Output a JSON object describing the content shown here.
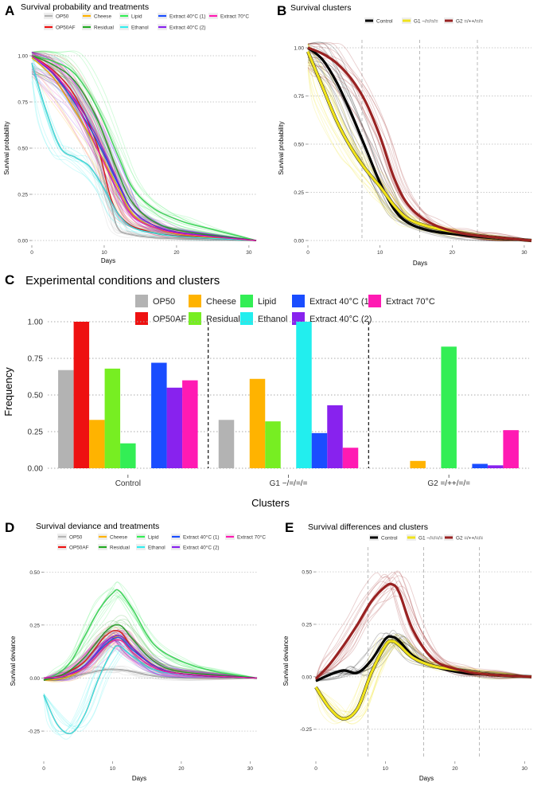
{
  "panels": [
    {
      "letter": "A",
      "title": "Survival probability and treatments",
      "type": "line",
      "xlabel": "Days",
      "ylabel": "Survival probability",
      "xlim": [
        0,
        31
      ],
      "ylim": [
        0,
        1
      ],
      "xticks": [
        0,
        10,
        20,
        30
      ],
      "yticks": [
        0,
        0.25,
        0.5,
        0.75,
        1.0
      ],
      "ytick_labels": [
        "0.00",
        "0.25",
        "0.50",
        "0.75",
        "1.00"
      ],
      "legend": [
        {
          "name": "OP50",
          "color": "#b3b3b3"
        },
        {
          "name": "Cheese",
          "color": "#ffb300"
        },
        {
          "name": "Lipid",
          "color": "#33ee55"
        },
        {
          "name": "Extract 40°C (1)",
          "color": "#1a4dff"
        },
        {
          "name": "Extract 70°C",
          "color": "#ff1ab3"
        },
        {
          "name": "OP50AF",
          "color": "#ee1111"
        },
        {
          "name": "Residual",
          "color": "#22aa22"
        },
        {
          "name": "Ethanol",
          "color": "#33eeee"
        },
        {
          "name": "Extract 40°C (2)",
          "color": "#8822ee"
        }
      ],
      "series": [
        {
          "name": "OP50",
          "color": "#b3b3b3",
          "x": [
            0,
            3,
            6,
            9,
            11,
            12,
            14,
            17,
            21,
            31
          ],
          "y": [
            1.0,
            0.9,
            0.72,
            0.45,
            0.18,
            0.06,
            0.03,
            0.015,
            0.01,
            0.0
          ]
        },
        {
          "name": "OP50AF",
          "color": "#ee1111",
          "x": [
            0,
            3,
            6,
            9,
            11,
            13,
            16,
            20,
            31
          ],
          "y": [
            1.0,
            0.92,
            0.78,
            0.52,
            0.22,
            0.1,
            0.05,
            0.025,
            0.0
          ]
        },
        {
          "name": "Cheese",
          "color": "#ffb300",
          "x": [
            0,
            3,
            6,
            9,
            12,
            14,
            17,
            21,
            31
          ],
          "y": [
            0.99,
            0.88,
            0.7,
            0.5,
            0.28,
            0.14,
            0.07,
            0.03,
            0.0
          ]
        },
        {
          "name": "Lipid",
          "color": "#33ee55",
          "x": [
            0,
            3,
            6,
            9,
            12,
            14,
            17,
            21,
            25,
            31
          ],
          "y": [
            1.0,
            0.97,
            0.9,
            0.72,
            0.45,
            0.28,
            0.17,
            0.1,
            0.06,
            0.0
          ]
        },
        {
          "name": "Residual",
          "color": "#22aa22",
          "x": [
            0,
            3,
            6,
            9,
            12,
            14,
            17,
            21,
            31
          ],
          "y": [
            1.0,
            0.95,
            0.86,
            0.66,
            0.36,
            0.2,
            0.1,
            0.05,
            0.0
          ]
        },
        {
          "name": "Ethanol",
          "color": "#33eeee",
          "x": [
            0,
            2,
            4,
            6,
            8,
            10,
            12,
            14,
            17,
            21,
            31
          ],
          "y": [
            0.96,
            0.7,
            0.5,
            0.45,
            0.4,
            0.28,
            0.14,
            0.07,
            0.04,
            0.02,
            0.0
          ]
        },
        {
          "name": "Extract 40°C (1)",
          "color": "#1a4dff",
          "x": [
            0,
            3,
            6,
            9,
            12,
            14,
            17,
            21,
            31
          ],
          "y": [
            1.0,
            0.9,
            0.74,
            0.54,
            0.3,
            0.16,
            0.08,
            0.04,
            0.0
          ]
        },
        {
          "name": "Extract 40°C (2)",
          "color": "#8822ee",
          "x": [
            0,
            3,
            6,
            9,
            12,
            14,
            17,
            21,
            31
          ],
          "y": [
            1.0,
            0.9,
            0.76,
            0.56,
            0.31,
            0.16,
            0.08,
            0.04,
            0.0
          ]
        },
        {
          "name": "Extract 70°C",
          "color": "#ff1ab3",
          "x": [
            0,
            3,
            6,
            9,
            12,
            14,
            17,
            21,
            31
          ],
          "y": [
            1.0,
            0.91,
            0.75,
            0.5,
            0.26,
            0.13,
            0.07,
            0.035,
            0.0
          ]
        }
      ]
    },
    {
      "letter": "B",
      "title": "Survival clusters",
      "type": "line",
      "xlabel": "Days",
      "ylabel": "Survival probability",
      "xlim": [
        0,
        31
      ],
      "ylim": [
        0,
        1
      ],
      "xticks": [
        0,
        10,
        20,
        30
      ],
      "yticks": [
        0,
        0.25,
        0.5,
        0.75,
        1.0
      ],
      "ytick_labels": [
        "0.00",
        "0.25",
        "0.50",
        "0.75",
        "1.00"
      ],
      "vlines": [
        7.5,
        15.5,
        23.5
      ],
      "legend": [
        {
          "name": "Control",
          "color": "#000000"
        },
        {
          "name": "G1 −/=/=/=",
          "color": "#f0e31c"
        },
        {
          "name": "G2 =/++/=/=",
          "color": "#992222"
        }
      ],
      "series": [
        {
          "name": "Control",
          "color": "#000000",
          "x": [
            0,
            2,
            4,
            6,
            8,
            10,
            12,
            14,
            17,
            21,
            25,
            31
          ],
          "y": [
            1.0,
            0.94,
            0.82,
            0.66,
            0.48,
            0.3,
            0.16,
            0.09,
            0.05,
            0.03,
            0.015,
            0.0
          ]
        },
        {
          "name": "G1 −/=/=/=",
          "color": "#f0e31c",
          "x": [
            0,
            2,
            4,
            6,
            8,
            10,
            12,
            14,
            17,
            21,
            25,
            31
          ],
          "y": [
            0.98,
            0.8,
            0.62,
            0.48,
            0.37,
            0.28,
            0.18,
            0.11,
            0.07,
            0.04,
            0.02,
            0.0
          ]
        },
        {
          "name": "G2 =/++/=/=",
          "color": "#992222",
          "x": [
            0,
            2,
            4,
            6,
            8,
            10,
            12,
            14,
            17,
            21,
            25,
            31
          ],
          "y": [
            1.0,
            0.97,
            0.92,
            0.84,
            0.72,
            0.54,
            0.32,
            0.18,
            0.09,
            0.04,
            0.02,
            0.0
          ]
        }
      ]
    },
    {
      "letter": "C",
      "title": "Experimental conditions and clusters",
      "type": "bar",
      "xlabel": "Clusters",
      "ylabel": "Frequency",
      "ylim": [
        0,
        1
      ],
      "yticks": [
        0,
        0.25,
        0.5,
        0.75,
        1.0
      ],
      "ytick_labels": [
        "0.00",
        "0.25",
        "0.50",
        "0.75",
        "1.00"
      ],
      "categories": [
        "Control",
        "G1 −/=/=/=",
        "G2 =/++/=/="
      ],
      "legend": [
        {
          "name": "OP50",
          "color": "#b3b3b3"
        },
        {
          "name": "Cheese",
          "color": "#ffb300"
        },
        {
          "name": "Lipid",
          "color": "#33ee55"
        },
        {
          "name": "Extract 40°C (1)",
          "color": "#1a4dff"
        },
        {
          "name": "Extract 70°C",
          "color": "#ff1ab3"
        },
        {
          "name": "OP50AF",
          "color": "#ee1111"
        },
        {
          "name": "Residual",
          "color": "#77ee22"
        },
        {
          "name": "Ethanol",
          "color": "#22eeee"
        },
        {
          "name": "Extract 40°C (2)",
          "color": "#8822ee"
        }
      ],
      "series": [
        {
          "name": "OP50",
          "color": "#b3b3b3",
          "values": [
            0.67,
            0.33,
            0.0
          ]
        },
        {
          "name": "OP50AF",
          "color": "#ee1111",
          "values": [
            1.0,
            0.0,
            0.0
          ]
        },
        {
          "name": "Cheese",
          "color": "#ffb300",
          "values": [
            0.33,
            0.61,
            0.05
          ]
        },
        {
          "name": "Residual",
          "color": "#77ee22",
          "values": [
            0.68,
            0.32,
            0.0
          ]
        },
        {
          "name": "Lipid",
          "color": "#33ee55",
          "values": [
            0.17,
            0.0,
            0.83
          ]
        },
        {
          "name": "Ethanol",
          "color": "#22eeee",
          "values": [
            0.0,
            1.0,
            0.0
          ]
        },
        {
          "name": "Extract 40°C (1)",
          "color": "#1a4dff",
          "values": [
            0.72,
            0.24,
            0.03
          ]
        },
        {
          "name": "Extract 40°C (2)",
          "color": "#8822ee",
          "values": [
            0.55,
            0.43,
            0.02
          ]
        },
        {
          "name": "Extract 70°C",
          "color": "#ff1ab3",
          "values": [
            0.6,
            0.14,
            0.26
          ]
        }
      ]
    },
    {
      "letter": "D",
      "title": "Survival deviance and treatments",
      "type": "line",
      "xlabel": "Days",
      "ylabel": "Survival deviance",
      "xlim": [
        0,
        31
      ],
      "ylim": [
        -0.37,
        0.58
      ],
      "xticks": [
        0,
        10,
        20,
        30
      ],
      "yticks": [
        -0.25,
        0,
        0.25,
        0.5
      ],
      "ytick_labels": [
        "-0.25",
        "0.00",
        "0.25",
        "0.50"
      ],
      "legend": [
        {
          "name": "OP50",
          "color": "#b3b3b3"
        },
        {
          "name": "Cheese",
          "color": "#ffb300"
        },
        {
          "name": "Lipid",
          "color": "#33ee55"
        },
        {
          "name": "Extract 40°C (1)",
          "color": "#1a4dff"
        },
        {
          "name": "Extract 70°C",
          "color": "#ff1ab3"
        },
        {
          "name": "OP50AF",
          "color": "#ee1111"
        },
        {
          "name": "Residual",
          "color": "#22aa22"
        },
        {
          "name": "Ethanol",
          "color": "#33eeee"
        },
        {
          "name": "Extract 40°C (2)",
          "color": "#8822ee"
        }
      ],
      "series": [
        {
          "name": "OP50",
          "color": "#b3b3b3",
          "x": [
            0,
            3,
            6,
            9,
            11,
            13,
            16,
            20,
            31
          ],
          "y": [
            0.0,
            0.0,
            0.02,
            0.04,
            0.04,
            0.03,
            0.01,
            0.0,
            0.0
          ]
        },
        {
          "name": "OP50AF",
          "color": "#ee1111",
          "x": [
            0,
            3,
            6,
            9,
            11,
            13,
            16,
            20,
            31
          ],
          "y": [
            -0.01,
            0.02,
            0.08,
            0.2,
            0.22,
            0.14,
            0.06,
            0.02,
            0.0
          ]
        },
        {
          "name": "Cheese",
          "color": "#ffb300",
          "x": [
            0,
            3,
            6,
            9,
            11,
            13,
            16,
            20,
            31
          ],
          "y": [
            -0.01,
            0.0,
            0.05,
            0.15,
            0.2,
            0.14,
            0.06,
            0.02,
            0.0
          ]
        },
        {
          "name": "Lipid",
          "color": "#33ee55",
          "x": [
            0,
            2,
            4,
            6,
            8,
            10,
            11,
            13,
            16,
            20,
            25,
            31
          ],
          "y": [
            -0.01,
            0.02,
            0.08,
            0.2,
            0.32,
            0.4,
            0.41,
            0.32,
            0.16,
            0.08,
            0.03,
            0.0
          ]
        },
        {
          "name": "Residual",
          "color": "#22aa22",
          "x": [
            0,
            3,
            6,
            9,
            11,
            13,
            16,
            20,
            31
          ],
          "y": [
            -0.01,
            0.02,
            0.1,
            0.22,
            0.25,
            0.18,
            0.08,
            0.03,
            0.0
          ]
        },
        {
          "name": "Ethanol",
          "color": "#33eeee",
          "x": [
            0,
            2,
            4,
            6,
            8,
            10,
            11,
            13,
            16,
            20,
            31
          ],
          "y": [
            -0.08,
            -0.22,
            -0.26,
            -0.17,
            0.0,
            0.13,
            0.15,
            0.1,
            0.04,
            0.02,
            0.0
          ]
        },
        {
          "name": "Extract 40°C (1)",
          "color": "#1a4dff",
          "x": [
            0,
            3,
            6,
            9,
            11,
            13,
            16,
            20,
            31
          ],
          "y": [
            0.0,
            0.01,
            0.06,
            0.16,
            0.19,
            0.13,
            0.06,
            0.02,
            0.0
          ]
        },
        {
          "name": "Extract 40°C (2)",
          "color": "#8822ee",
          "x": [
            0,
            3,
            6,
            9,
            11,
            13,
            16,
            20,
            31
          ],
          "y": [
            0.0,
            0.01,
            0.06,
            0.17,
            0.2,
            0.14,
            0.06,
            0.02,
            0.0
          ]
        },
        {
          "name": "Extract 70°C",
          "color": "#ff1ab3",
          "x": [
            0,
            3,
            6,
            9,
            11,
            13,
            16,
            20,
            31
          ],
          "y": [
            0.0,
            0.01,
            0.05,
            0.15,
            0.18,
            0.12,
            0.05,
            0.02,
            0.0
          ]
        }
      ]
    },
    {
      "letter": "E",
      "title": "Survival differences and clusters",
      "type": "line",
      "xlabel": "Days",
      "ylabel": "Survival deviance",
      "xlim": [
        0,
        31
      ],
      "ylim": [
        -0.38,
        0.58
      ],
      "xticks": [
        0,
        10,
        20,
        30
      ],
      "yticks": [
        -0.25,
        0,
        0.25,
        0.5
      ],
      "ytick_labels": [
        "-0.25",
        "0.00",
        "0.25",
        "0.50"
      ],
      "vlines": [
        7.5,
        15.5,
        23.5
      ],
      "legend": [
        {
          "name": "Control",
          "color": "#000000"
        },
        {
          "name": "G1 −/=/=/=",
          "color": "#f0e31c"
        },
        {
          "name": "G2 =/++/=/=",
          "color": "#992222"
        }
      ],
      "series": [
        {
          "name": "Control",
          "color": "#000000",
          "x": [
            0,
            2,
            4,
            6,
            8,
            10,
            11,
            12,
            14,
            17,
            21,
            25,
            31
          ],
          "y": [
            -0.02,
            0.01,
            0.03,
            0.02,
            0.08,
            0.18,
            0.19,
            0.17,
            0.1,
            0.05,
            0.02,
            0.01,
            0.0
          ]
        },
        {
          "name": "G1 −/=/=/=",
          "color": "#f0e31c",
          "x": [
            0,
            2,
            4,
            6,
            8,
            10,
            11,
            12,
            14,
            17,
            21,
            25,
            31
          ],
          "y": [
            -0.05,
            -0.15,
            -0.2,
            -0.15,
            0.02,
            0.15,
            0.17,
            0.15,
            0.09,
            0.05,
            0.03,
            0.01,
            0.0
          ]
        },
        {
          "name": "G2 =/++/=/=",
          "color": "#992222",
          "x": [
            0,
            2,
            4,
            6,
            8,
            10,
            11,
            12,
            14,
            17,
            21,
            25,
            31
          ],
          "y": [
            -0.01,
            0.06,
            0.15,
            0.25,
            0.36,
            0.43,
            0.44,
            0.4,
            0.22,
            0.08,
            0.03,
            0.01,
            0.0
          ]
        }
      ]
    }
  ]
}
